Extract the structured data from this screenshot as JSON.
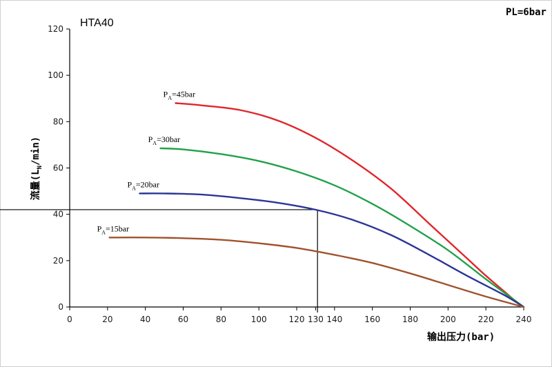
{
  "chart_data": {
    "type": "line",
    "title": "HTA40",
    "note": "PL=6bar",
    "xlabel": "输出压力(bar)",
    "ylabel": "流量(LN/min)",
    "ylabel_parts": {
      "pre": "流量(L",
      "sub": "N",
      "post": "/min)"
    },
    "xlim": [
      0,
      240
    ],
    "ylim": [
      0,
      120
    ],
    "xticks": [
      0,
      20,
      40,
      60,
      80,
      100,
      120,
      130,
      140,
      160,
      180,
      200,
      220,
      240
    ],
    "yticks": [
      0,
      20,
      40,
      60,
      80,
      100,
      120
    ],
    "grid": false,
    "reference": {
      "x": 131,
      "y": 42
    },
    "series": [
      {
        "name": "PA=45bar",
        "name_main": "P",
        "name_sub": "A",
        "name_post": "=45bar",
        "color": "#e0262b",
        "x": [
          56,
          70,
          90,
          110,
          130,
          150,
          170,
          190,
          200,
          210,
          220,
          230,
          235,
          240
        ],
        "y": [
          88,
          87,
          85,
          80.5,
          73,
          63,
          51,
          36,
          28.5,
          21,
          13.5,
          6.5,
          3,
          0
        ]
      },
      {
        "name": "PA=30bar",
        "name_main": "P",
        "name_sub": "A",
        "name_post": "=30bar",
        "color": "#22a04a",
        "x": [
          48,
          60,
          80,
          100,
          120,
          140,
          160,
          180,
          200,
          220,
          230,
          240
        ],
        "y": [
          68.5,
          68,
          66,
          63,
          58.5,
          52.5,
          44.5,
          35,
          24.5,
          12,
          6,
          0
        ]
      },
      {
        "name": "PA=20bar",
        "name_main": "P",
        "name_sub": "A",
        "name_post": "=20bar",
        "color": "#2b3595",
        "x": [
          37,
          50,
          70,
          90,
          110,
          130,
          150,
          170,
          190,
          210,
          230,
          240
        ],
        "y": [
          49,
          49,
          48.5,
          47,
          45,
          42,
          37.5,
          31,
          22.5,
          13.5,
          5,
          0
        ]
      },
      {
        "name": "PA=15bar",
        "name_main": "P",
        "name_sub": "A",
        "name_post": "=15bar",
        "color": "#a0522d",
        "x": [
          21,
          40,
          60,
          80,
          100,
          120,
          140,
          160,
          180,
          200,
          220,
          240
        ],
        "y": [
          30,
          30,
          29.7,
          29,
          27.5,
          25.5,
          22.5,
          19,
          14.5,
          9.5,
          4.5,
          0
        ]
      }
    ]
  }
}
